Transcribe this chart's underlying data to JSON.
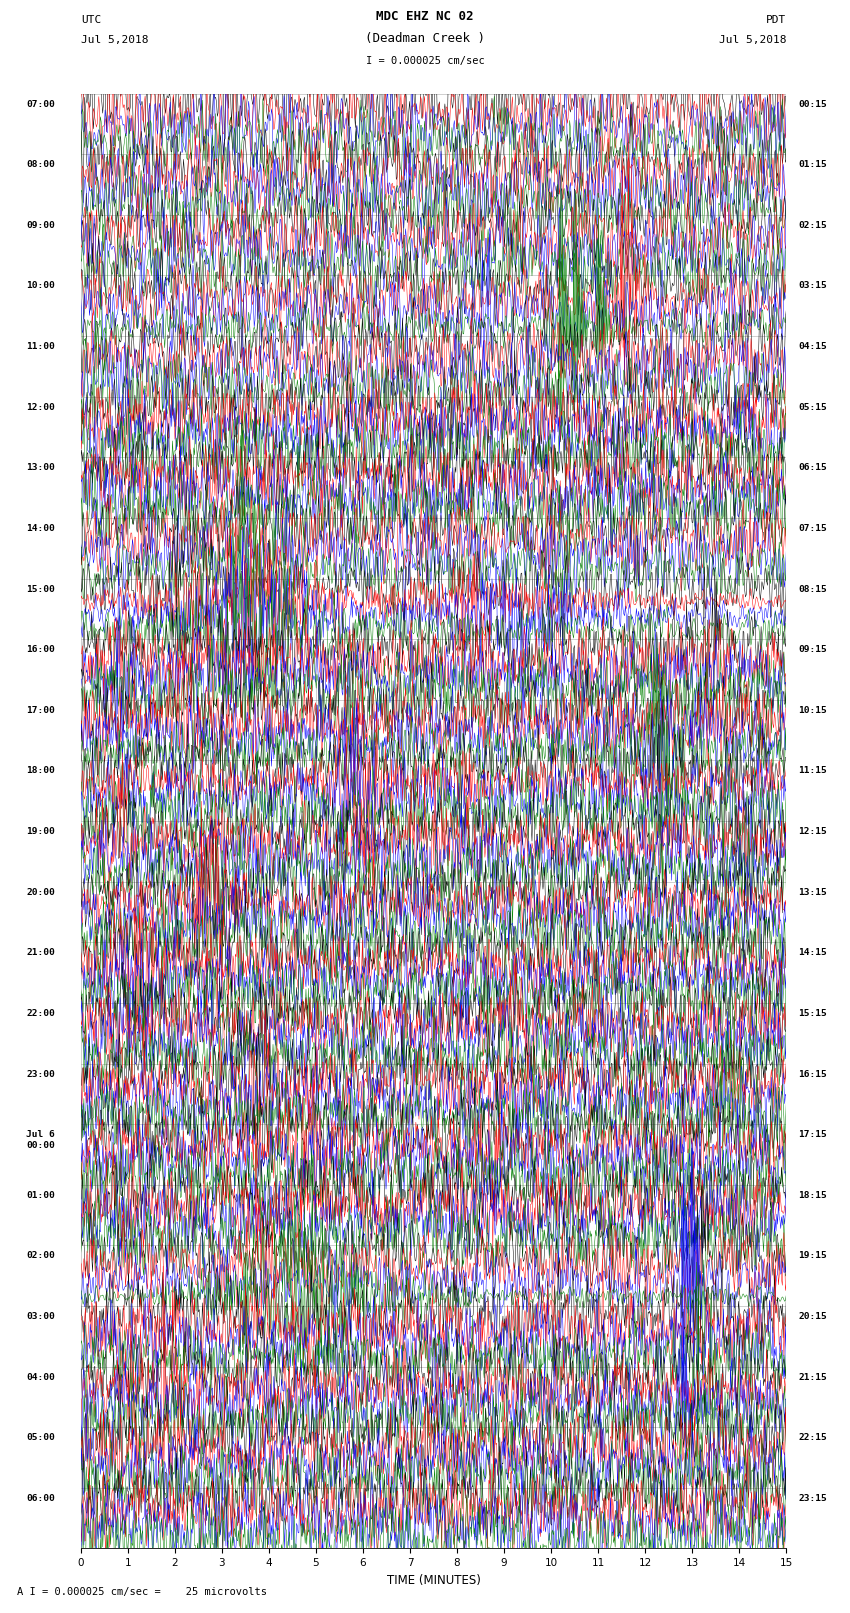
{
  "title_line1": "MDC EHZ NC 02",
  "title_line2": "(Deadman Creek )",
  "scale_text": "I = 0.000025 cm/sec",
  "left_label_top": "UTC",
  "left_label_date": "Jul 5,2018",
  "right_label_top": "PDT",
  "right_label_date": "Jul 5,2018",
  "bottom_label": "TIME (MINUTES)",
  "footnote": "A I = 0.000025 cm/sec =    25 microvolts",
  "utc_times": [
    "07:00",
    "08:00",
    "09:00",
    "10:00",
    "11:00",
    "12:00",
    "13:00",
    "14:00",
    "15:00",
    "16:00",
    "17:00",
    "18:00",
    "19:00",
    "20:00",
    "21:00",
    "22:00",
    "23:00",
    "Jul 6\n00:00",
    "01:00",
    "02:00",
    "03:00",
    "04:00",
    "05:00",
    "06:00"
  ],
  "pdt_times": [
    "00:15",
    "01:15",
    "02:15",
    "03:15",
    "04:15",
    "05:15",
    "06:15",
    "07:15",
    "08:15",
    "09:15",
    "10:15",
    "11:15",
    "12:15",
    "13:15",
    "14:15",
    "15:15",
    "16:15",
    "17:15",
    "18:15",
    "19:15",
    "20:15",
    "21:15",
    "22:15",
    "23:15"
  ],
  "n_hour_rows": 24,
  "colors": [
    "black",
    "red",
    "blue",
    "green"
  ],
  "bg_color": "white",
  "grid_color": "#888888"
}
